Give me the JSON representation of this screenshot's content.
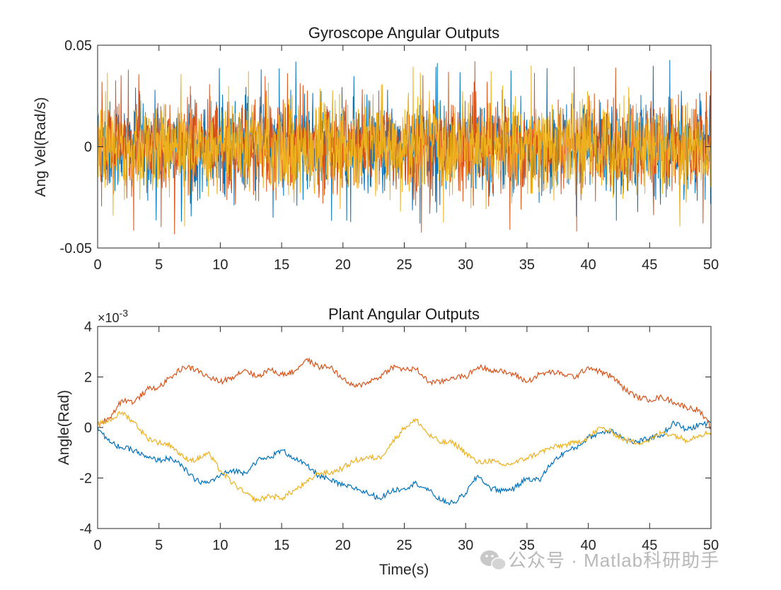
{
  "chart_data": [
    {
      "type": "line",
      "title": "Gyroscope Angular Outputs",
      "xlabel": "",
      "ylabel": "Ang Vel(Rad/s)",
      "xlim": [
        0,
        50
      ],
      "ylim": [
        -0.05,
        0.05
      ],
      "x_ticks": [
        0,
        5,
        10,
        15,
        20,
        25,
        30,
        35,
        40,
        45,
        50
      ],
      "y_ticks": [
        -0.05,
        0,
        0.05
      ],
      "y_tick_labels": [
        "-0.05",
        "0",
        "0.05"
      ],
      "grid": false,
      "description_of_signal": "dense zero-mean noise on three channels, typical band about -0.02 to 0.02, peaks about -0.044 to 0.043",
      "series": [
        {
          "color": "#0072BD",
          "x": [
            0,
            50
          ],
          "band": [
            -0.02,
            0.02
          ],
          "extremes": [
            -0.04,
            0.043
          ]
        },
        {
          "color": "#D95319",
          "x": [
            0,
            50
          ],
          "band": [
            -0.02,
            0.02
          ],
          "extremes": [
            -0.044,
            0.04
          ]
        },
        {
          "color": "#EDB120",
          "x": [
            0,
            50
          ],
          "band": [
            -0.02,
            0.02
          ],
          "extremes": [
            -0.04,
            0.042
          ]
        }
      ]
    },
    {
      "type": "line",
      "title": "Plant Angular Outputs",
      "xlabel": "Time(s)",
      "ylabel": "Angle(Rad)",
      "xlim": [
        0,
        50
      ],
      "ylim": [
        -4,
        4
      ],
      "y_exponent_label": "×10",
      "y_exponent_value": "-3",
      "x_ticks": [
        0,
        5,
        10,
        15,
        20,
        25,
        30,
        35,
        40,
        45,
        50
      ],
      "y_ticks": [
        -4,
        -2,
        0,
        2,
        4
      ],
      "grid": false,
      "series": [
        {
          "color": "#0072BD",
          "x": [
            0,
            1,
            2,
            3,
            4,
            5,
            6,
            7,
            8,
            9,
            10,
            11,
            12,
            13,
            14,
            15,
            16,
            17,
            18,
            19,
            20,
            21,
            22,
            23,
            24,
            25,
            26,
            27,
            28,
            29,
            30,
            31,
            32,
            33,
            34,
            35,
            36,
            37,
            38,
            39,
            40,
            41,
            42,
            43,
            44,
            45,
            46,
            47,
            48,
            49,
            50
          ],
          "values": [
            0,
            -0.6,
            -0.8,
            -0.9,
            -1.2,
            -1.3,
            -1.2,
            -1.6,
            -2.1,
            -2.2,
            -1.9,
            -1.7,
            -1.8,
            -1.3,
            -1.2,
            -0.9,
            -1.2,
            -1.5,
            -1.9,
            -2.1,
            -2.3,
            -2.4,
            -2.6,
            -2.8,
            -2.5,
            -2.4,
            -2.2,
            -2.5,
            -2.9,
            -3.0,
            -2.6,
            -1.9,
            -2.4,
            -2.5,
            -2.4,
            -2.0,
            -2.1,
            -1.4,
            -1.0,
            -0.8,
            -0.4,
            -0.2,
            -0.1,
            -0.5,
            -0.6,
            -0.4,
            -0.3,
            0.2,
            -0.1,
            0.1,
            0.2
          ]
        },
        {
          "color": "#D95319",
          "x": [
            0,
            1,
            2,
            3,
            4,
            5,
            6,
            7,
            8,
            9,
            10,
            11,
            12,
            13,
            14,
            15,
            16,
            17,
            18,
            19,
            20,
            21,
            22,
            23,
            24,
            25,
            26,
            27,
            28,
            29,
            30,
            31,
            32,
            33,
            34,
            35,
            36,
            37,
            38,
            39,
            40,
            41,
            42,
            43,
            44,
            45,
            46,
            47,
            48,
            49,
            50
          ],
          "values": [
            0.1,
            0.4,
            1.1,
            1.0,
            1.5,
            1.6,
            2.0,
            2.4,
            2.3,
            2.0,
            1.8,
            2.0,
            2.3,
            2.0,
            2.3,
            2.1,
            2.2,
            2.7,
            2.4,
            2.4,
            1.9,
            1.6,
            1.8,
            2.0,
            2.4,
            2.3,
            2.3,
            1.8,
            1.8,
            2.0,
            2.0,
            2.4,
            2.3,
            2.2,
            2.1,
            1.8,
            2.1,
            2.2,
            2.1,
            2.0,
            2.4,
            2.2,
            2.0,
            1.5,
            1.2,
            1.1,
            1.2,
            1.0,
            0.8,
            0.7,
            0.0
          ]
        },
        {
          "color": "#EDB120",
          "x": [
            0,
            1,
            2,
            3,
            4,
            5,
            6,
            7,
            8,
            9,
            10,
            11,
            12,
            13,
            14,
            15,
            16,
            17,
            18,
            19,
            20,
            21,
            22,
            23,
            24,
            25,
            26,
            27,
            28,
            29,
            30,
            31,
            32,
            33,
            34,
            35,
            36,
            37,
            38,
            39,
            40,
            41,
            42,
            43,
            44,
            45,
            46,
            47,
            48,
            49,
            50
          ],
          "values": [
            0.1,
            0.3,
            0.6,
            0.2,
            -0.4,
            -0.6,
            -0.7,
            -1.2,
            -1.3,
            -1.0,
            -1.7,
            -2.2,
            -2.6,
            -2.9,
            -2.7,
            -2.8,
            -2.5,
            -2.2,
            -1.8,
            -1.8,
            -1.6,
            -1.3,
            -1.2,
            -1.2,
            -0.6,
            0.0,
            0.3,
            -0.3,
            -0.6,
            -0.6,
            -1.0,
            -1.4,
            -1.3,
            -1.5,
            -1.4,
            -1.2,
            -1.0,
            -0.8,
            -0.7,
            -0.6,
            -0.4,
            0.0,
            -0.2,
            -0.5,
            -0.6,
            -0.5,
            -0.2,
            -0.3,
            -0.5,
            -0.3,
            -0.2
          ]
        }
      ]
    }
  ],
  "watermark": {
    "text": "公众号 · Matlab科研助手",
    "icon": "wechat-icon"
  }
}
